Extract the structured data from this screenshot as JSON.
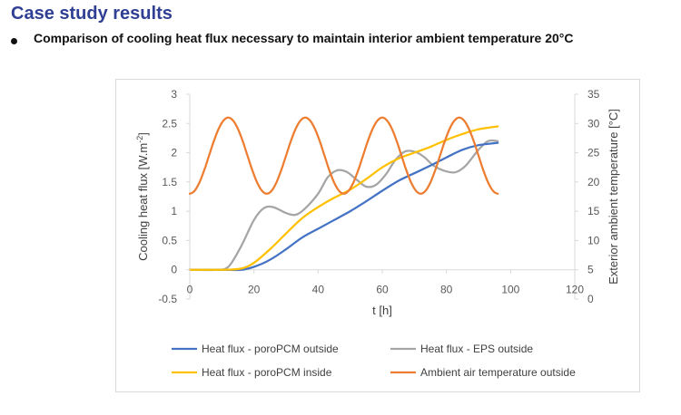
{
  "slide": {
    "title": "Case study results",
    "bullet": "Comparison of cooling heat flux necessary to maintain interior ambient temperature 20°C"
  },
  "chart_data": {
    "type": "line",
    "xlabel": "t [h]",
    "ylabel_left": "Cooling heat flux [W.m",
    "ylabel_left_sup": "-2",
    "ylabel_left_end": "]",
    "ylabel_right": "Exterior ambient temperature [°C]",
    "xlim": [
      0,
      120
    ],
    "ylim_left": [
      -0.5,
      3
    ],
    "ylim_right": [
      0,
      35
    ],
    "x_ticks": [
      0,
      20,
      40,
      60,
      80,
      100,
      120
    ],
    "x_tick_labels": [
      "0",
      "20",
      "40",
      "60",
      "80",
      "100",
      "120"
    ],
    "y_left_ticks": [
      -0.5,
      0,
      0.5,
      1,
      1.5,
      2,
      2.5,
      3
    ],
    "y_left_tick_labels": [
      "-0.5",
      "0",
      "0.5",
      "1",
      "1.5",
      "2",
      "2.5",
      "3"
    ],
    "y_right_ticks": [
      0,
      5,
      10,
      15,
      20,
      25,
      30,
      35
    ],
    "y_right_tick_labels": [
      "0",
      "5",
      "10",
      "15",
      "20",
      "25",
      "30",
      "35"
    ],
    "grid": false,
    "legend_position": "bottom",
    "series": [
      {
        "name": "Heat flux - poroPCM outside",
        "color": "#4472c4",
        "axis": "left",
        "x": [
          0,
          10,
          16,
          20,
          25,
          30,
          35,
          40,
          45,
          50,
          55,
          60,
          65,
          70,
          75,
          80,
          85,
          90,
          96
        ],
        "y": [
          0,
          0,
          0,
          0.05,
          0.17,
          0.35,
          0.55,
          0.7,
          0.85,
          1.0,
          1.17,
          1.35,
          1.52,
          1.65,
          1.78,
          1.92,
          2.05,
          2.13,
          2.17
        ]
      },
      {
        "name": "Heat flux - EPS outside",
        "color": "#a5a5a5",
        "axis": "left",
        "x": [
          0,
          8,
          12,
          16,
          20,
          23,
          26,
          30,
          33,
          36,
          40,
          43,
          46,
          49,
          52,
          55,
          58,
          61,
          64,
          67,
          70,
          73,
          76,
          80,
          83,
          86,
          90,
          93,
          96
        ],
        "y": [
          0,
          0,
          0.05,
          0.4,
          0.85,
          1.05,
          1.07,
          0.97,
          0.94,
          1.05,
          1.3,
          1.58,
          1.7,
          1.67,
          1.54,
          1.42,
          1.45,
          1.62,
          1.87,
          2.02,
          2.02,
          1.93,
          1.78,
          1.68,
          1.67,
          1.78,
          2.05,
          2.2,
          2.2
        ]
      },
      {
        "name": "Heat flux - poroPCM inside",
        "color": "#ffc000",
        "axis": "left",
        "x": [
          0,
          10,
          16,
          20,
          25,
          30,
          35,
          40,
          45,
          50,
          55,
          60,
          65,
          70,
          75,
          80,
          85,
          90,
          96
        ],
        "y": [
          0,
          0,
          0.02,
          0.12,
          0.35,
          0.62,
          0.88,
          1.07,
          1.23,
          1.37,
          1.55,
          1.75,
          1.9,
          2.0,
          2.1,
          2.22,
          2.32,
          2.4,
          2.45
        ]
      },
      {
        "name": "Ambient air temperature outside",
        "color": "#ed7d31",
        "axis": "right",
        "period": 24,
        "mean": 24.5,
        "amplitude": 6.5,
        "phase_peak_hour": 12,
        "x_start": 0,
        "x_end": 96
      }
    ]
  }
}
